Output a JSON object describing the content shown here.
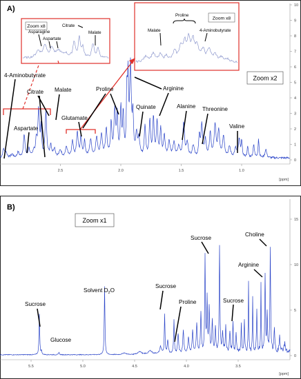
{
  "chart_data": [
    {
      "type": "line",
      "panel_label": "A)",
      "zoom_label": "Zoom x2",
      "xlabel": "[ppm]",
      "x_range": [
        3.0,
        0.6
      ],
      "x_ticks": [
        "2.5",
        "2.0",
        "1.5",
        "1.0"
      ],
      "x_tick_values": [
        2.5,
        2.0,
        1.5,
        1.0
      ],
      "y_ticks": [
        "0",
        "1",
        "2",
        "3",
        "4",
        "5",
        "6",
        "7",
        "8",
        "9",
        "10"
      ],
      "grid": false,
      "legend": "none",
      "peaks": [
        {
          "label": "4-Aminobutyrate",
          "ppm": 2.97,
          "height": 0.5
        },
        {
          "label": "Aspartate",
          "ppm": 2.8,
          "height": 1.3
        },
        {
          "label": "Citrate",
          "ppm": 2.68,
          "height": 2.8
        },
        {
          "label": "Malate",
          "ppm": 2.62,
          "height": 2.6
        },
        {
          "label": "Glutamate",
          "ppm": 2.36,
          "height": 1.4
        },
        {
          "label": "Proline",
          "ppm": 2.05,
          "height": 2.6
        },
        {
          "label": "Arginine",
          "ppm": 1.92,
          "height": 5.2
        },
        {
          "label": "Quinate",
          "ppm": 1.87,
          "height": 1.3
        },
        {
          "label": "Alanine",
          "ppm": 1.48,
          "height": 2.0
        },
        {
          "label": "Threonine",
          "ppm": 1.33,
          "height": 1.9
        },
        {
          "label": "Valine",
          "ppm": 1.02,
          "height": 1.0
        }
      ],
      "insets": [
        {
          "zoom_label": "Zoom x8",
          "labels": [
            "Asparagine",
            "Aspartate",
            "Citrate",
            "Malate"
          ]
        },
        {
          "zoom_label": "Zoom x8",
          "labels": [
            "Proline",
            "Malate",
            "4-Aminobutyrate"
          ]
        }
      ]
    },
    {
      "type": "line",
      "panel_label": "B)",
      "zoom_label": "Zoom x1",
      "xlabel": "[ppm]",
      "x_range": [
        5.8,
        3.0
      ],
      "x_ticks": [
        "5.5",
        "5.0",
        "4.5",
        "4.0",
        "3.5"
      ],
      "x_tick_values": [
        5.5,
        5.0,
        4.5,
        4.0,
        3.5
      ],
      "y_ticks": [
        "0",
        "5",
        "10",
        "15"
      ],
      "grid": false,
      "legend": "none",
      "peaks": [
        {
          "label": "Sucrose",
          "ppm": 5.42,
          "height": 4.5
        },
        {
          "label": "Glucose",
          "ppm": 5.23,
          "height": 0.3
        },
        {
          "label": "Solvent D2O",
          "ppm": 4.79,
          "height": 7.5
        },
        {
          "label": "Sucrose",
          "ppm": 4.21,
          "height": 4.3
        },
        {
          "label": "Proline",
          "ppm": 4.12,
          "height": 3.8
        },
        {
          "label": "Sucrose",
          "ppm": 3.82,
          "height": 10.5
        },
        {
          "label": "Sucrose",
          "ppm": 3.68,
          "height": 11.5
        },
        {
          "label": "Sucrose",
          "ppm": 3.55,
          "height": 3.5
        },
        {
          "label": "Sucrose",
          "ppm": 3.47,
          "height": 3.0
        },
        {
          "label": "Arginine",
          "ppm": 3.24,
          "height": 8.7
        },
        {
          "label": "Choline",
          "ppm": 3.19,
          "height": 11.3
        }
      ]
    }
  ]
}
